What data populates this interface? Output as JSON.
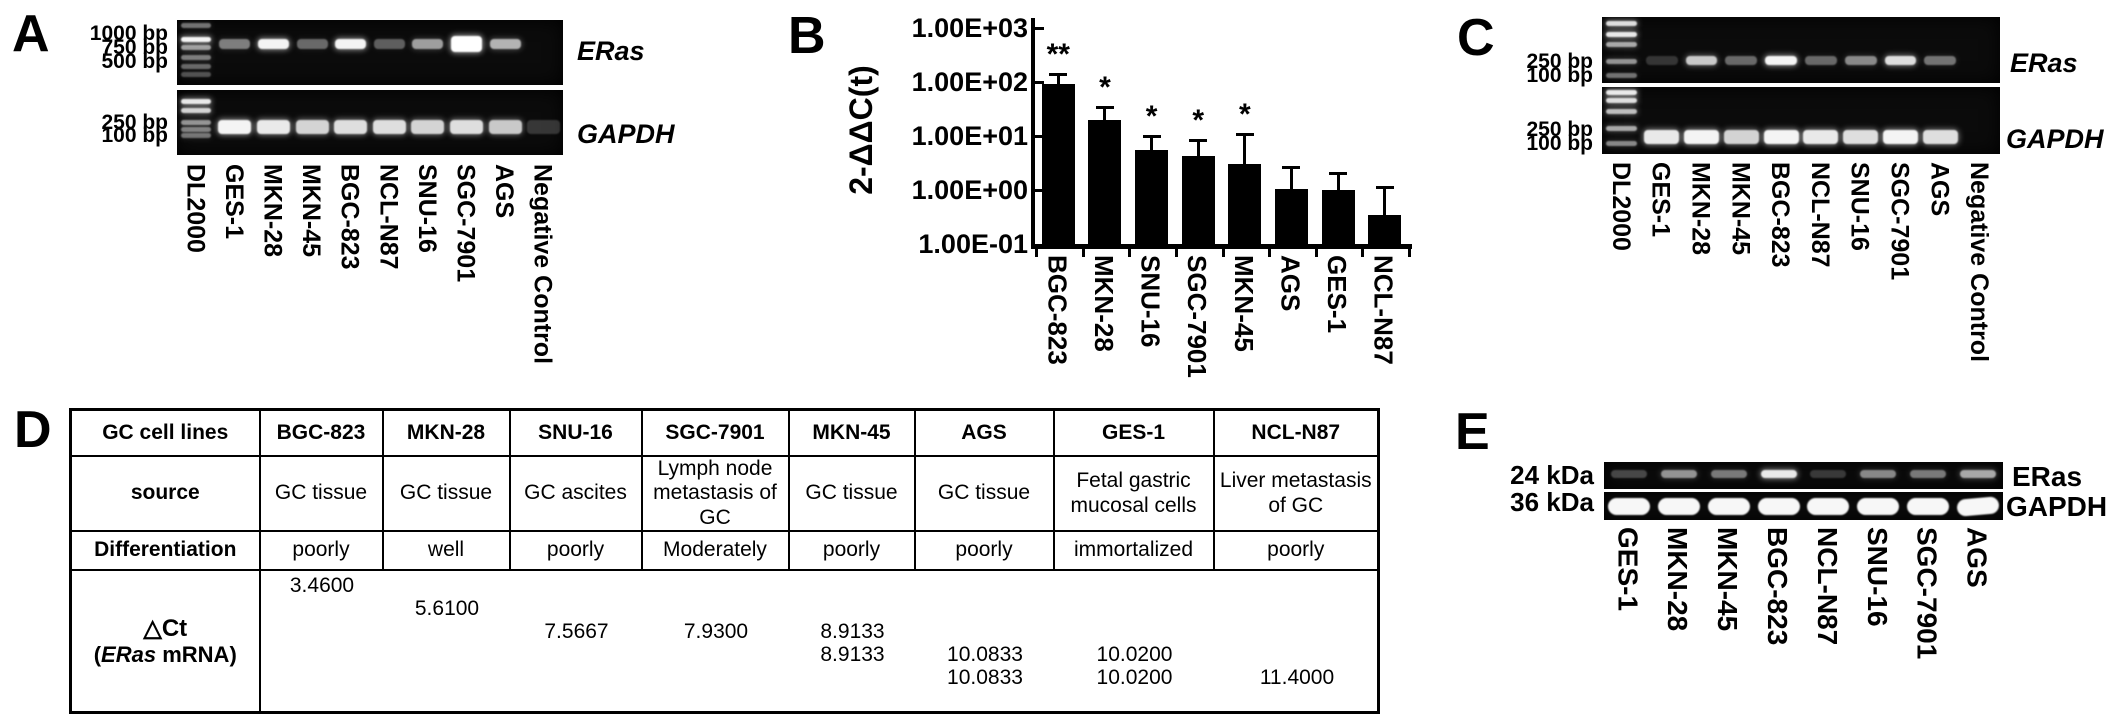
{
  "panel_a": {
    "label": "A",
    "marker_labels_upper": [
      "1000 bp",
      "750 bp",
      "500 bp"
    ],
    "marker_labels_lower": [
      "250 bp",
      "100 bp"
    ],
    "lane_labels": [
      "DL2000",
      "GES-1",
      "MKN-28",
      "MKN-45",
      "BGC-823",
      "NCL-N87",
      "SNU-16",
      "SGC-7901",
      "AGS",
      "Negative Control"
    ],
    "gene_labels": [
      "ERas",
      "GAPDH"
    ],
    "gel_data": {
      "eras_band_intensities": [
        0.4,
        0.95,
        0.3,
        0.95,
        0.25,
        0.55,
        1.0,
        0.65,
        0
      ],
      "gapdh_band_intensities": [
        0.95,
        0.9,
        0.8,
        0.85,
        0.85,
        0.8,
        0.85,
        0.75,
        0.07
      ]
    }
  },
  "panel_b": {
    "label": "B",
    "chart_data": {
      "type": "bar",
      "title": "",
      "ylabel": "2-ΔΔC(t)",
      "xlabel": "",
      "yscale": "log",
      "ylim": [
        0.1,
        1000
      ],
      "ytick_labels": [
        "1.00E+03",
        "1.00E+02",
        "1.00E+01",
        "1.00E+00",
        "1.00E-01"
      ],
      "categories": [
        "BGC-823",
        "MKN-28",
        "SNU-16",
        "SGC-7901",
        "MKN-45",
        "AGS",
        "GES-1",
        "NCL-N87"
      ],
      "values": [
        90,
        20,
        5.5,
        4.3,
        3.0,
        1.05,
        1.0,
        0.35
      ],
      "error_upper": [
        140,
        35,
        10,
        8.5,
        11,
        2.7,
        2.1,
        1.15
      ],
      "significance": [
        "**",
        "*",
        "*",
        "*",
        "*",
        "",
        "",
        ""
      ],
      "bar_color": "#000000",
      "grid": false,
      "legend_position": "none"
    }
  },
  "panel_c": {
    "label": "C",
    "marker_labels_upper": [
      "250 bp",
      "100 bp"
    ],
    "marker_labels_lower": [
      "250 bp",
      "100 bp"
    ],
    "lane_labels": [
      "DL2000",
      "GES-1",
      "MKN-28",
      "MKN-45",
      "BGC-823",
      "NCL-N87",
      "SNU-16",
      "SGC-7901",
      "AGS",
      "Negative Control"
    ],
    "gene_labels": [
      "ERas",
      "GAPDH"
    ],
    "gel_data": {
      "eras_band_intensities": [
        0.06,
        0.75,
        0.3,
        0.95,
        0.3,
        0.45,
        0.85,
        0.35,
        0
      ],
      "gapdh_band_intensities": [
        0.9,
        0.95,
        0.8,
        0.95,
        0.9,
        0.85,
        0.95,
        0.85,
        0
      ]
    }
  },
  "panel_d": {
    "label": "D",
    "table": {
      "header": [
        "GC cell lines",
        "BGC-823",
        "MKN-28",
        "SNU-16",
        "SGC-7901",
        "MKN-45",
        "AGS",
        "GES-1",
        "NCL-N87"
      ],
      "source_label": "source",
      "source_cells": [
        "GC tissue",
        "GC tissue",
        "GC ascites",
        "Lymph node metastasis of GC",
        "GC tissue",
        "GC tissue",
        "Fetal gastric mucosal cells",
        "Liver metastasis of GC"
      ],
      "differentiation_label": "Differentiation",
      "differentiation_cells": [
        "poorly",
        "well",
        "poorly",
        "Moderately",
        "poorly",
        "poorly",
        "immortalized",
        "poorly"
      ],
      "dct_label": {
        "line1": "△Ct",
        "line2_open": "(",
        "line2_gene": "ERas",
        "line2_rest": " mRNA",
        "line2_close": ")"
      },
      "dct_entries": [
        {
          "col": 0,
          "line": 0,
          "value": "3.4600"
        },
        {
          "col": 1,
          "line": 1,
          "value": "5.6100"
        },
        {
          "col": 2,
          "line": 2,
          "value": "7.5667"
        },
        {
          "col": 3,
          "line": 2,
          "value": "7.9300"
        },
        {
          "col": 4,
          "line": 2,
          "value": "8.9133"
        },
        {
          "col": 4,
          "line": 3,
          "value": "8.9133"
        },
        {
          "col": 5,
          "line": 3,
          "value": "10.0833"
        },
        {
          "col": 6,
          "line": 3,
          "value": "10.0200"
        },
        {
          "col": 5,
          "line": 4,
          "value": "10.0833"
        },
        {
          "col": 6,
          "line": 4,
          "value": "10.0200"
        },
        {
          "col": 7,
          "line": 4,
          "value": "11.4000"
        }
      ]
    }
  },
  "panel_e": {
    "label": "E",
    "marker_labels": [
      "24 kDa",
      "36 kDa"
    ],
    "protein_labels": [
      "ERas",
      "GAPDH"
    ],
    "lane_labels": [
      "GES-1",
      "MKN-28",
      "MKN-45",
      "BGC-823",
      "NCL-N87",
      "SNU-16",
      "SGC-7901",
      "AGS"
    ],
    "blot_data": {
      "eras_band_intensities": [
        0.15,
        0.5,
        0.38,
        0.9,
        0.08,
        0.45,
        0.38,
        0.6
      ],
      "gapdh_band_intensities": [
        1,
        1,
        1,
        1,
        1,
        1,
        1,
        1
      ]
    }
  }
}
